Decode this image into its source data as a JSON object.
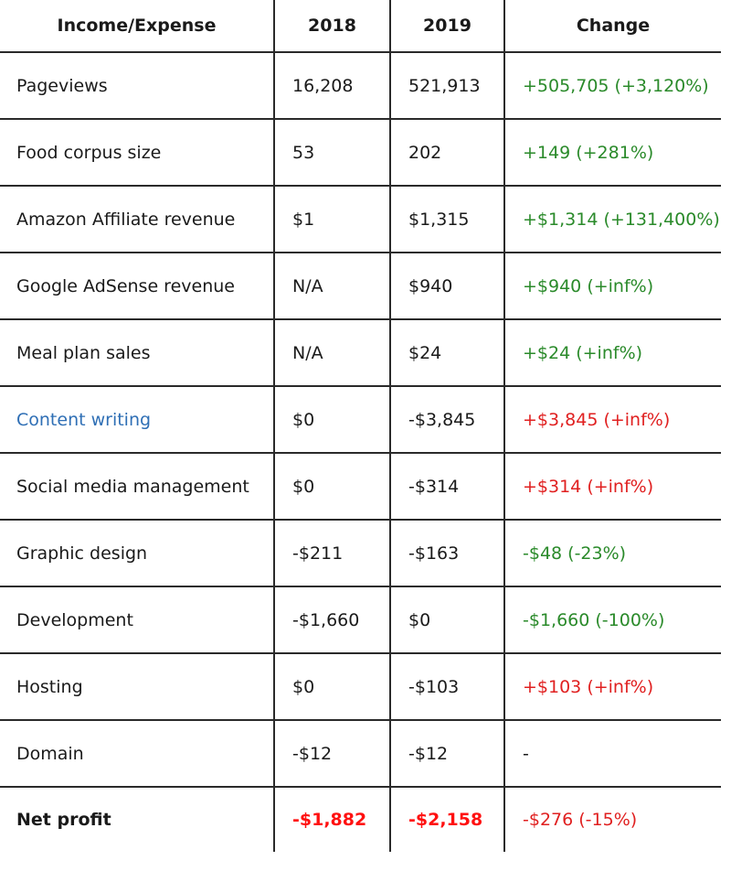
{
  "table": {
    "headers": [
      "Income/Expense",
      "2018",
      "2019",
      "Change"
    ],
    "rows": [
      {
        "label": "Pageviews",
        "y2018": "16,208",
        "y2019": "521,913",
        "change": "+505,705 (+3,120%)",
        "change_tone": "pos"
      },
      {
        "label": "Food corpus size",
        "y2018": "53",
        "y2019": "202",
        "change": "+149 (+281%)",
        "change_tone": "pos"
      },
      {
        "label": "Amazon Affiliate revenue",
        "y2018": "$1",
        "y2019": "$1,315",
        "change": "+$1,314 (+131,400%)",
        "change_tone": "pos"
      },
      {
        "label": "Google AdSense revenue",
        "y2018": "N/A",
        "y2019": "$940",
        "change": "+$940 (+inf%)",
        "change_tone": "pos"
      },
      {
        "label": "Meal plan sales",
        "y2018": "N/A",
        "y2019": "$24",
        "change": "+$24 (+inf%)",
        "change_tone": "pos"
      },
      {
        "label": "Content writing",
        "y2018": "$0",
        "y2019": "-$3,845",
        "change": "+$3,845 (+inf%)",
        "change_tone": "neg",
        "is_link": true
      },
      {
        "label": "Social media management",
        "y2018": "$0",
        "y2019": "-$314",
        "change": "+$314 (+inf%)",
        "change_tone": "neg"
      },
      {
        "label": "Graphic design",
        "y2018": "-$211",
        "y2019": "-$163",
        "change": "-$48 (-23%)",
        "change_tone": "pos"
      },
      {
        "label": "Development",
        "y2018": "-$1,660",
        "y2019": "$0",
        "change": "-$1,660 (-100%)",
        "change_tone": "pos"
      },
      {
        "label": "Hosting",
        "y2018": "$0",
        "y2019": "-$103",
        "change": "+$103 (+inf%)",
        "change_tone": "neg"
      },
      {
        "label": "Domain",
        "y2018": "-$12",
        "y2019": "-$12",
        "change": "-",
        "change_tone": "none"
      },
      {
        "label": "Net profit",
        "y2018": "-$1,882",
        "y2019": "-$2,158",
        "change": "-$276 (-15%)",
        "change_tone": "neg",
        "is_total": true
      }
    ]
  },
  "colors": {
    "positive": "#2a8a2a",
    "negative": "#e02020",
    "link": "#2f6fb5",
    "grid": "#2a2a2a"
  }
}
